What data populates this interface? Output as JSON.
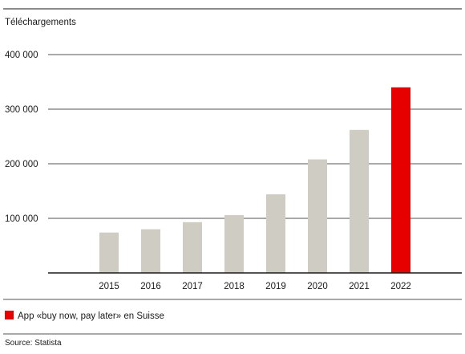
{
  "chart_data": {
    "type": "bar",
    "ylabel": "Téléchargements",
    "xlabel": "",
    "categories": [
      "2015",
      "2016",
      "2017",
      "2018",
      "2019",
      "2020",
      "2021",
      "2022"
    ],
    "values": [
      74000,
      80000,
      93000,
      106000,
      144000,
      208000,
      262000,
      340000
    ],
    "highlight_index": 7,
    "ylim": [
      0,
      400000
    ],
    "yticks": [
      100000,
      200000,
      300000,
      400000
    ],
    "ytick_labels": [
      "100 000",
      "200 000",
      "300 000",
      "400 000"
    ],
    "grid": true,
    "legend": {
      "label": "App «buy now, pay later» en Suisse",
      "position": "bottom-left"
    },
    "colors": {
      "bar": "#cfcdc3",
      "highlight": "#e60000",
      "grid": "#1a1a1a"
    }
  },
  "source": "Source: Statista"
}
